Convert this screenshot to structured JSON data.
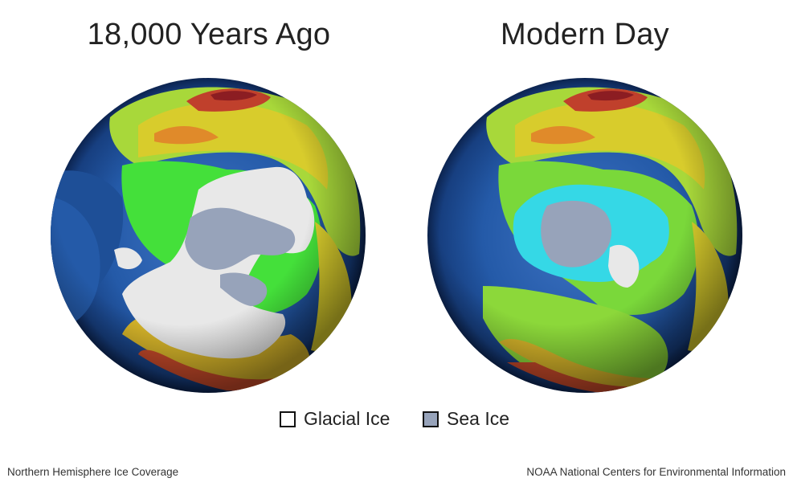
{
  "panels": [
    {
      "title": "18,000 Years Ago"
    },
    {
      "title": "Modern Day"
    }
  ],
  "legend": [
    {
      "label": "Glacial Ice",
      "color": "#ffffff"
    },
    {
      "label": "Sea Ice",
      "color": "#97a3ba"
    }
  ],
  "footer": {
    "left": "Northern Hemisphere Ice Coverage",
    "right": "NOAA National Centers for Environmental Information"
  },
  "colors": {
    "ocean": "#1e4f97",
    "land_low": "#3fe23a",
    "land_mid": "#e3d62a",
    "land_high": "#c5332a",
    "glacial_ice": "#e8e8e8",
    "sea_ice": "#97a3ba",
    "shelf": "#35d8e6"
  }
}
